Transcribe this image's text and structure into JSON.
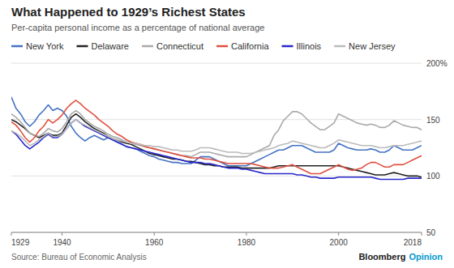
{
  "chart_data": {
    "type": "line",
    "title": "What Happened to 1929’s Richest States",
    "subtitle": "Per-capita personal income as a percentage of national average",
    "source": "Source: Bureau of Economic Analysis",
    "annotations": [
      "Bloomberg",
      "Opinion"
    ],
    "x": [
      1929,
      1930,
      1931,
      1932,
      1933,
      1934,
      1935,
      1936,
      1937,
      1938,
      1939,
      1940,
      1941,
      1942,
      1943,
      1944,
      1945,
      1946,
      1947,
      1948,
      1949,
      1950,
      1951,
      1952,
      1953,
      1954,
      1955,
      1956,
      1957,
      1958,
      1959,
      1960,
      1961,
      1962,
      1963,
      1964,
      1965,
      1966,
      1967,
      1968,
      1969,
      1970,
      1971,
      1972,
      1973,
      1974,
      1975,
      1976,
      1977,
      1978,
      1979,
      1980,
      1981,
      1982,
      1983,
      1984,
      1985,
      1986,
      1987,
      1988,
      1989,
      1990,
      1991,
      1992,
      1993,
      1994,
      1995,
      1996,
      1997,
      1998,
      1999,
      2000,
      2001,
      2002,
      2003,
      2004,
      2005,
      2006,
      2007,
      2008,
      2009,
      2010,
      2011,
      2012,
      2013,
      2014,
      2015,
      2016,
      2017,
      2018
    ],
    "series": [
      {
        "name": "New York",
        "color": "#4472c4",
        "values": [
          170,
          160,
          155,
          148,
          144,
          148,
          154,
          158,
          163,
          158,
          160,
          158,
          153,
          144,
          138,
          134,
          131,
          134,
          136,
          134,
          132,
          134,
          132,
          130,
          128,
          126,
          125,
          124,
          122,
          120,
          118,
          117,
          115,
          114,
          113,
          112,
          112,
          111,
          111,
          111,
          114,
          117,
          117,
          117,
          115,
          113,
          111,
          109,
          109,
          109,
          109,
          109,
          111,
          113,
          115,
          117,
          119,
          121,
          123,
          123,
          125,
          127,
          127,
          127,
          125,
          123,
          121,
          121,
          121,
          121,
          123,
          129,
          127,
          125,
          124,
          123,
          123,
          123,
          124,
          123,
          121,
          121,
          123,
          127,
          125,
          123,
          123,
          123,
          125,
          127
        ]
      },
      {
        "name": "Delaware",
        "color": "#222222",
        "values": [
          150,
          148,
          145,
          142,
          138,
          136,
          134,
          136,
          138,
          136,
          136,
          138,
          145,
          152,
          155,
          152,
          148,
          145,
          142,
          140,
          138,
          135,
          133,
          132,
          130,
          129,
          128,
          126,
          124,
          122,
          120,
          119,
          118,
          117,
          116,
          115,
          115,
          114,
          113,
          113,
          112,
          111,
          110,
          110,
          109,
          109,
          108,
          108,
          108,
          108,
          107,
          107,
          107,
          107,
          107,
          107,
          107,
          108,
          109,
          109,
          109,
          109,
          109,
          109,
          109,
          109,
          109,
          109,
          109,
          109,
          109,
          109,
          108,
          107,
          106,
          105,
          104,
          103,
          102,
          101,
          101,
          101,
          102,
          103,
          102,
          101,
          100,
          100,
          100,
          99
        ]
      },
      {
        "name": "Connecticut",
        "color": "#aaaaaa",
        "values": [
          155,
          152,
          148,
          143,
          138,
          136,
          135,
          138,
          142,
          140,
          139,
          142,
          148,
          155,
          158,
          155,
          150,
          147,
          144,
          142,
          140,
          137,
          135,
          134,
          132,
          130,
          129,
          128,
          127,
          126,
          125,
          124,
          123,
          122,
          121,
          120,
          119,
          118,
          118,
          117,
          119,
          121,
          121,
          121,
          120,
          119,
          118,
          117,
          117,
          117,
          117,
          117,
          119,
          121,
          123,
          125,
          127,
          136,
          141,
          149,
          153,
          157,
          157,
          155,
          151,
          147,
          144,
          141,
          141,
          144,
          147,
          155,
          153,
          151,
          149,
          147,
          146,
          145,
          146,
          145,
          143,
          143,
          145,
          149,
          147,
          145,
          144,
          143,
          143,
          141
        ]
      },
      {
        "name": "California",
        "color": "#e05040",
        "values": [
          148,
          145,
          140,
          134,
          130,
          134,
          140,
          144,
          150,
          147,
          150,
          154,
          160,
          164,
          167,
          164,
          160,
          157,
          154,
          150,
          147,
          144,
          140,
          137,
          135,
          132,
          130,
          129,
          128,
          126,
          125,
          124,
          123,
          122,
          121,
          120,
          119,
          118,
          117,
          116,
          116,
          116,
          115,
          115,
          114,
          113,
          112,
          111,
          111,
          111,
          111,
          111,
          111,
          110,
          109,
          108,
          107,
          107,
          107,
          108,
          109,
          110,
          108,
          106,
          104,
          102,
          102,
          102,
          104,
          106,
          108,
          110,
          108,
          106,
          105,
          106,
          107,
          110,
          112,
          112,
          110,
          108,
          108,
          110,
          110,
          110,
          112,
          114,
          116,
          118
        ]
      },
      {
        "name": "Illinois",
        "color": "#2828cc",
        "values": [
          140,
          137,
          132,
          127,
          124,
          127,
          130,
          134,
          137,
          134,
          134,
          137,
          142,
          147,
          150,
          147,
          144,
          142,
          140,
          138,
          136,
          134,
          132,
          130,
          128,
          126,
          125,
          124,
          123,
          122,
          121,
          120,
          119,
          118,
          117,
          116,
          115,
          114,
          113,
          112,
          112,
          112,
          111,
          111,
          110,
          109,
          108,
          107,
          107,
          107,
          106,
          106,
          105,
          104,
          103,
          102,
          102,
          102,
          102,
          102,
          102,
          102,
          101,
          101,
          100,
          99,
          99,
          98,
          98,
          98,
          98,
          99,
          99,
          99,
          99,
          99,
          99,
          99,
          99,
          98,
          97,
          97,
          97,
          97,
          97,
          97,
          98,
          98,
          98,
          98
        ]
      },
      {
        "name": "New Jersey",
        "color": "#bbbbbb",
        "values": [
          140,
          138,
          135,
          131,
          127,
          129,
          132,
          135,
          138,
          135,
          135,
          137,
          142,
          147,
          150,
          147,
          145,
          143,
          141,
          139,
          137,
          135,
          133,
          132,
          131,
          130,
          129,
          129,
          128,
          127,
          127,
          126,
          126,
          125,
          124,
          123,
          123,
          122,
          122,
          122,
          123,
          125,
          125,
          125,
          124,
          123,
          122,
          121,
          121,
          121,
          120,
          120,
          120,
          121,
          122,
          123,
          124,
          125,
          127,
          128,
          129,
          131,
          130,
          129,
          128,
          127,
          126,
          125,
          125,
          127,
          129,
          132,
          131,
          130,
          129,
          128,
          127,
          127,
          127,
          126,
          125,
          125,
          126,
          127,
          127,
          127,
          128,
          129,
          130,
          131
        ]
      }
    ],
    "xlim": [
      1929,
      2018
    ],
    "xticks": [
      1929,
      1940,
      1960,
      1980,
      2000,
      2018
    ],
    "ylim": [
      50,
      200
    ],
    "yticks": [
      50,
      100,
      150,
      {
        "value": 200,
        "label": "200%"
      }
    ],
    "grid": true,
    "legend": "top"
  }
}
